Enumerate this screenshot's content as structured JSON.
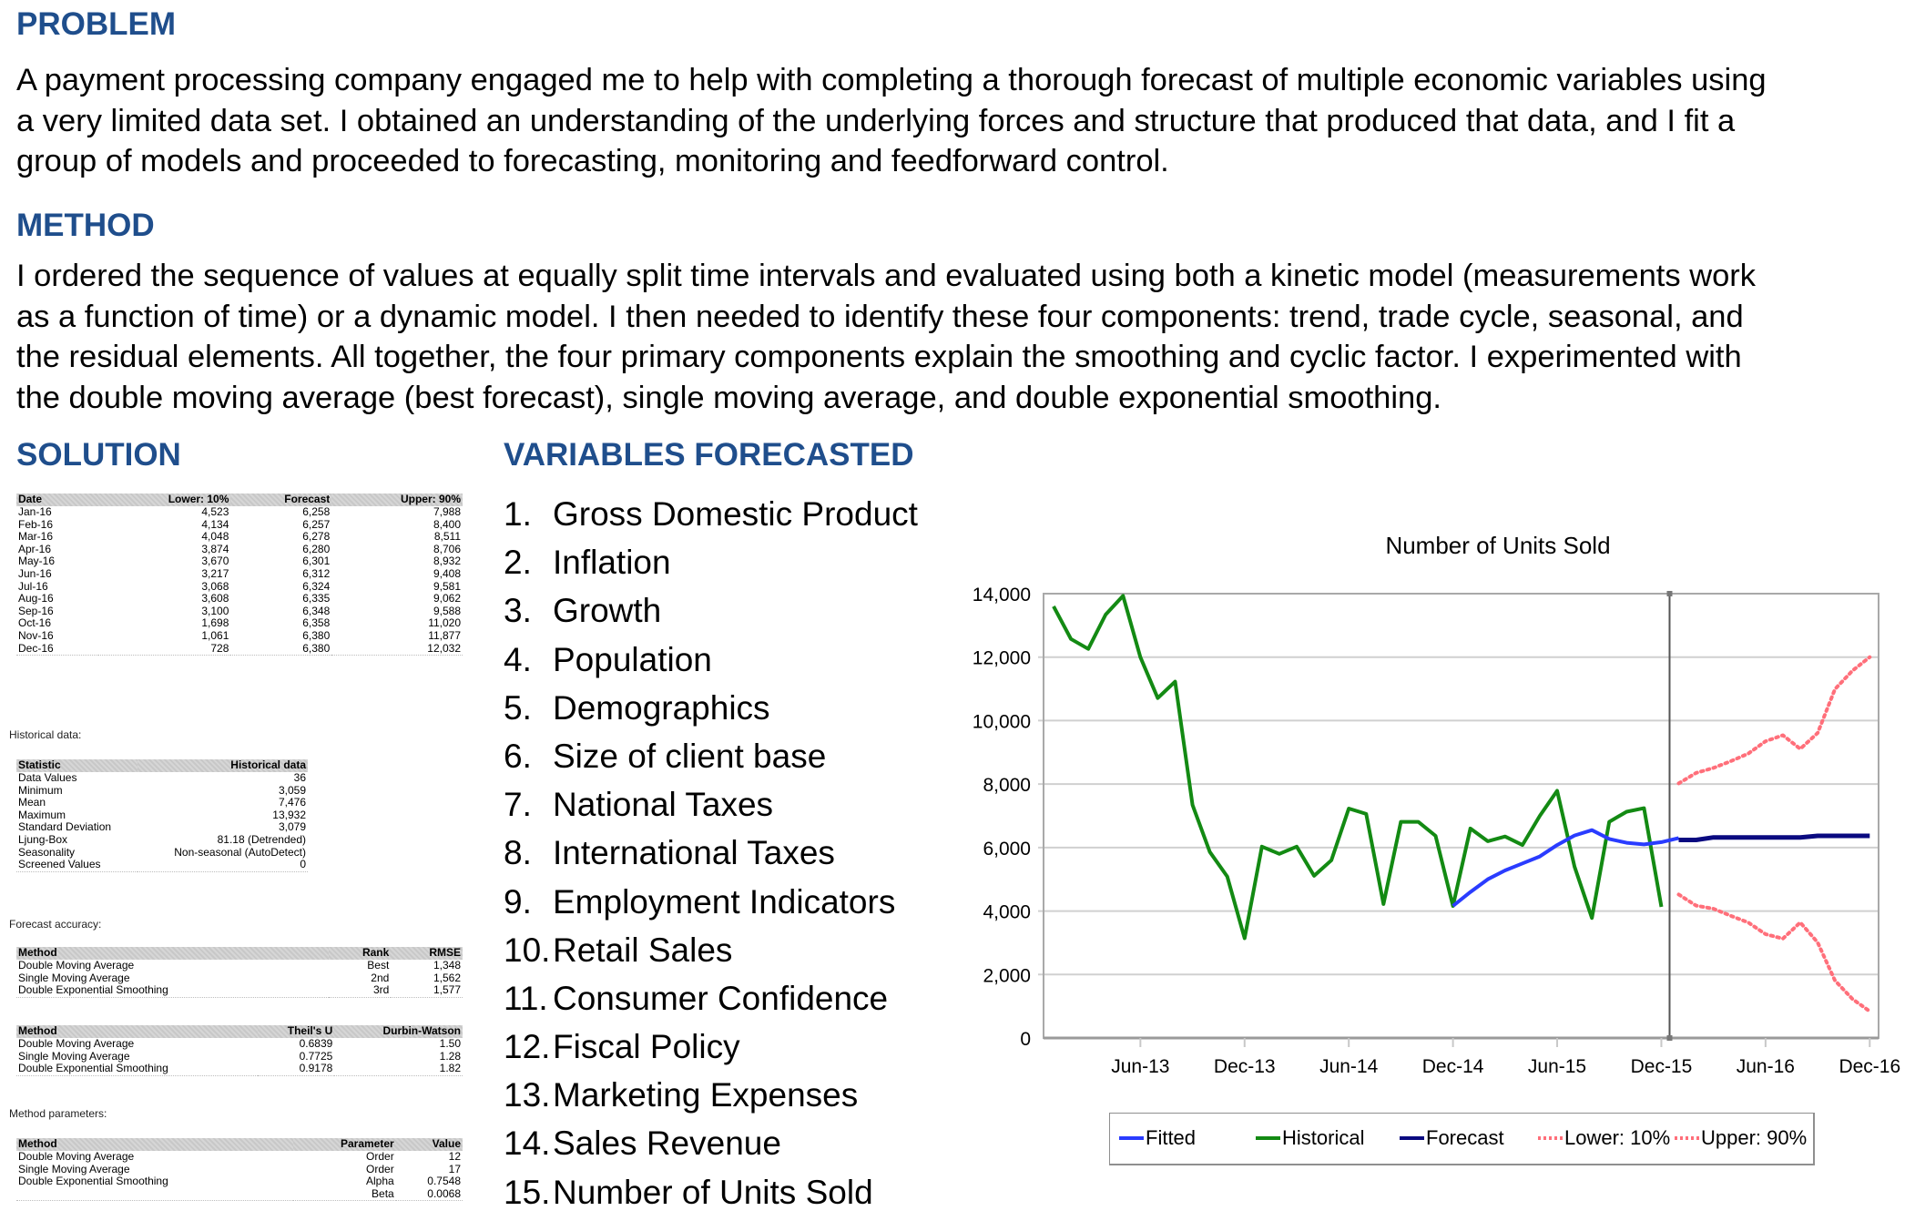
{
  "problem": {
    "heading": "PROBLEM",
    "lines": [
      "A payment processing company engaged me to help with completing a thorough forecast of multiple economic variables using",
      "a very limited data set. I obtained an understanding of the underlying forces and structure that produced that data, and I fit a",
      "group of models and proceeded to forecasting, monitoring and feedforward control."
    ]
  },
  "method": {
    "heading": "METHOD",
    "lines": [
      "I ordered the sequence of values at equally split time intervals and evaluated using both a kinetic model (measurements work",
      "as a function of time) or a dynamic model.  I then needed to identify these four components: trend, trade cycle, seasonal, and",
      "the residual elements.  All together, the four primary components explain the smoothing and cyclic factor. I experimented with",
      "the double moving average (best forecast), single moving average, and double exponential smoothing."
    ]
  },
  "solution": {
    "heading": "SOLUTION",
    "forecast_table": {
      "headers": [
        "Date",
        "Lower: 10%",
        "Forecast",
        "Upper: 90%"
      ],
      "rows": [
        [
          "Jan-16",
          "4,523",
          "6,258",
          "7,988"
        ],
        [
          "Feb-16",
          "4,134",
          "6,257",
          "8,400"
        ],
        [
          "Mar-16",
          "4,048",
          "6,278",
          "8,511"
        ],
        [
          "Apr-16",
          "3,874",
          "6,280",
          "8,706"
        ],
        [
          "May-16",
          "3,670",
          "6,301",
          "8,932"
        ],
        [
          "Jun-16",
          "3,217",
          "6,312",
          "9,408"
        ],
        [
          "Jul-16",
          "3,068",
          "6,324",
          "9,581"
        ],
        [
          "Aug-16",
          "3,608",
          "6,335",
          "9,062"
        ],
        [
          "Sep-16",
          "3,100",
          "6,348",
          "9,588"
        ],
        [
          "Oct-16",
          "1,698",
          "6,358",
          "11,020"
        ],
        [
          "Nov-16",
          "1,061",
          "6,380",
          "11,877"
        ],
        [
          "Dec-16",
          "728",
          "6,380",
          "12,032"
        ]
      ]
    },
    "historical_caption": "Historical data:",
    "stats_table": {
      "headers": [
        "Statistic",
        "Historical data"
      ],
      "rows": [
        [
          "Data Values",
          "36"
        ],
        [
          "Minimum",
          "3,059"
        ],
        [
          "Mean",
          "7,476"
        ],
        [
          "Maximum",
          "13,932"
        ],
        [
          "Standard Deviation",
          "3,079"
        ],
        [
          "Ljung-Box",
          "81.18 (Detrended)"
        ],
        [
          "Seasonality",
          "Non-seasonal (AutoDetect)"
        ],
        [
          "Screened Values",
          "0"
        ]
      ]
    },
    "accuracy_caption": "Forecast accuracy:",
    "rank_table": {
      "headers": [
        "Method",
        "Rank",
        "RMSE"
      ],
      "rows": [
        [
          "Double Moving Average",
          "Best",
          "1,348"
        ],
        [
          "Single Moving Average",
          "2nd",
          "1,562"
        ],
        [
          "Double Exponential Smoothing",
          "3rd",
          "1,577"
        ]
      ]
    },
    "theil_table": {
      "headers": [
        "Method",
        "Theil's U",
        "Durbin-Watson"
      ],
      "rows": [
        [
          "Double Moving Average",
          "0.6839",
          "1.50"
        ],
        [
          "Single Moving Average",
          "0.7725",
          "1.28"
        ],
        [
          "Double Exponential Smoothing",
          "0.9178",
          "1.82"
        ]
      ]
    },
    "params_caption": "Method parameters:",
    "params_table": {
      "headers": [
        "Method",
        "Parameter",
        "Value"
      ],
      "rows": [
        [
          "Double Moving Average",
          "Order",
          "12"
        ],
        [
          "Single Moving Average",
          "Order",
          "17"
        ],
        [
          "Double Exponential Smoothing",
          "Alpha",
          "0.7548"
        ],
        [
          "",
          "Beta",
          "0.0068"
        ]
      ]
    }
  },
  "variables": {
    "heading": "VARIABLES FORECASTED",
    "items": [
      {
        "num": "1.",
        "label": "Gross Domestic Product"
      },
      {
        "num": "2.",
        "label": "Inflation"
      },
      {
        "num": "3.",
        "label": "Growth"
      },
      {
        "num": "4.",
        "label": "Population"
      },
      {
        "num": "5.",
        "label": "Demographics"
      },
      {
        "num": "6.",
        "label": "Size of client base"
      },
      {
        "num": "7.",
        "label": "National Taxes"
      },
      {
        "num": "8.",
        "label": "International Taxes"
      },
      {
        "num": "9.",
        "label": "Employment Indicators"
      },
      {
        "num": "10.",
        "label": "Retail Sales"
      },
      {
        "num": "11.",
        "label": "Consumer Confidence"
      },
      {
        "num": "12.",
        "label": "Fiscal Policy"
      },
      {
        "num": "13.",
        "label": "Marketing Expenses"
      },
      {
        "num": "14.",
        "label": "Sales Revenue"
      },
      {
        "num": "15.",
        "label": "Number of Units Sold"
      }
    ]
  },
  "colors": {
    "heading": "#1f4e8c",
    "fitted": "#2a3cff",
    "historical": "#138a13",
    "forecast": "#0a0a80",
    "bounds": "#ff6f7a"
  },
  "chart_data": {
    "type": "line",
    "title": "Number of Units Sold",
    "xlabel": "",
    "ylabel": "",
    "ylim": [
      0,
      14000
    ],
    "yticks": [
      "0",
      "2,000",
      "4,000",
      "6,000",
      "8,000",
      "10,000",
      "12,000",
      "14,000"
    ],
    "ytick_values": [
      0,
      2000,
      4000,
      6000,
      8000,
      10000,
      12000,
      14000
    ],
    "xticks": [
      "Jun-13",
      "Dec-13",
      "Jun-14",
      "Dec-14",
      "Jun-15",
      "Dec-15",
      "Jun-16",
      "Dec-16"
    ],
    "xtick_month_index": [
      5,
      11,
      17,
      23,
      29,
      35,
      41,
      47
    ],
    "x_start": "Jan-13",
    "forecast_divider_after_month_index": 35.5,
    "grid": true,
    "legend_position": "bottom",
    "series": [
      {
        "name": "Fitted",
        "start_month_index": 23,
        "values": [
          4160,
          4600,
          5000,
          5280,
          5500,
          5720,
          6080,
          6380,
          6550,
          6270,
          6150,
          6100,
          6170,
          6300
        ]
      },
      {
        "name": "Historical",
        "start_month_index": 0,
        "values": [
          13600,
          12570,
          12260,
          13340,
          13930,
          12000,
          10710,
          11230,
          7340,
          5860,
          5090,
          3140,
          6030,
          5800,
          6030,
          5110,
          5600,
          7230,
          7060,
          4220,
          6810,
          6810,
          6370,
          4160,
          6600,
          6200,
          6350,
          6080,
          7000,
          7790,
          5400,
          3780,
          6810,
          7130,
          7240,
          4130
        ]
      },
      {
        "name": "Forecast",
        "start_month_index": 36,
        "values": [
          6240,
          6240,
          6320,
          6320,
          6320,
          6320,
          6320,
          6320,
          6370,
          6370,
          6370,
          6370
        ]
      },
      {
        "name": "Lower: 10%",
        "start_month_index": 36,
        "values": [
          4520,
          4170,
          4070,
          3850,
          3640,
          3270,
          3130,
          3640,
          3010,
          1810,
          1230,
          840
        ]
      },
      {
        "name": "Upper: 90%",
        "start_month_index": 36,
        "values": [
          8020,
          8350,
          8510,
          8720,
          8960,
          9350,
          9540,
          9110,
          9610,
          10990,
          11570,
          12000
        ]
      }
    ]
  }
}
